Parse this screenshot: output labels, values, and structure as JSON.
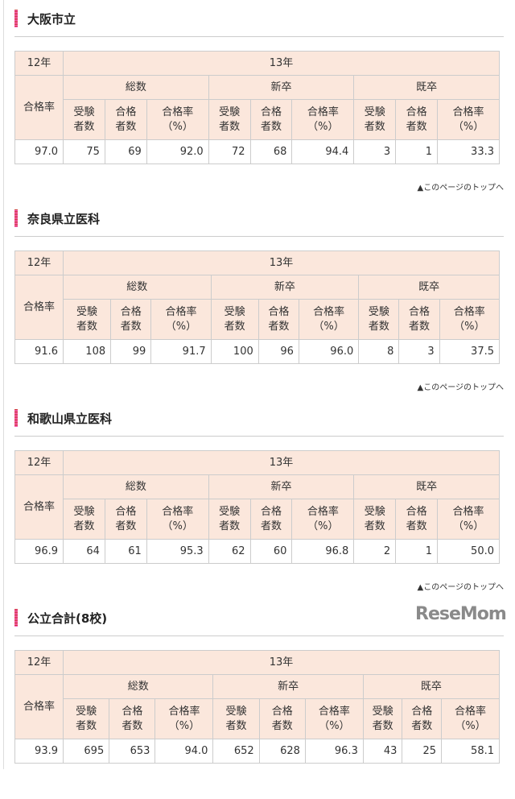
{
  "labels": {
    "prev_year": "12年",
    "cur_year": "13年",
    "pass_rate": "合格率",
    "groups": [
      "総数",
      "新卒",
      "既卒"
    ],
    "cols": [
      "受験\n者数",
      "合格\n者数",
      "合格率\n（%）"
    ],
    "top_link": "▲このページのトップへ"
  },
  "sections": [
    {
      "title": "大阪市立",
      "rate12": "97.0",
      "vals": [
        "75",
        "69",
        "92.0",
        "72",
        "68",
        "94.4",
        "3",
        "1",
        "33.3"
      ]
    },
    {
      "title": "奈良県立医科",
      "rate12": "91.6",
      "vals": [
        "108",
        "99",
        "91.7",
        "100",
        "96",
        "96.0",
        "8",
        "3",
        "37.5"
      ]
    },
    {
      "title": "和歌山県立医科",
      "rate12": "96.9",
      "vals": [
        "64",
        "61",
        "95.3",
        "62",
        "60",
        "96.8",
        "2",
        "1",
        "50.0"
      ]
    },
    {
      "title": "公立合計(8校)",
      "rate12": "93.9",
      "vals": [
        "695",
        "653",
        "94.0",
        "652",
        "628",
        "96.3",
        "43",
        "25",
        "58.1"
      ]
    }
  ],
  "watermark": "ReseMom"
}
